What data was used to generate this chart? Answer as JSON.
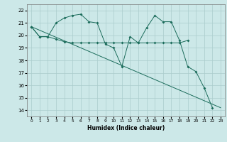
{
  "xlabel": "Humidex (Indice chaleur)",
  "background_color": "#cce8e8",
  "grid_color": "#aacccc",
  "line_color": "#1a6b5a",
  "xlim": [
    -0.5,
    23.5
  ],
  "ylim": [
    13.5,
    22.5
  ],
  "yticks": [
    14,
    15,
    16,
    17,
    18,
    19,
    20,
    21,
    22
  ],
  "xtick_labels": [
    "0",
    "1",
    "2",
    "3",
    "4",
    "5",
    "6",
    "7",
    "8",
    "9",
    "10",
    "11",
    "12",
    "13",
    "14",
    "15",
    "16",
    "17",
    "18",
    "19",
    "20",
    "21",
    "22",
    "23"
  ],
  "series1_x": [
    0,
    1,
    2,
    3,
    4,
    5,
    6,
    7,
    8,
    9,
    10,
    11,
    12,
    13,
    14,
    15,
    16,
    17,
    18,
    19,
    20,
    21,
    22
  ],
  "series1_y": [
    20.7,
    19.9,
    19.9,
    21.0,
    21.4,
    21.6,
    21.7,
    21.1,
    21.0,
    19.3,
    19.0,
    17.5,
    19.9,
    19.4,
    20.6,
    21.6,
    21.1,
    21.1,
    19.6,
    17.5,
    17.1,
    15.8,
    14.2
  ],
  "series2_x": [
    0,
    1,
    2,
    3,
    4,
    5,
    6,
    7,
    8,
    9,
    10,
    11,
    12,
    13,
    14,
    15,
    16,
    17,
    18,
    19
  ],
  "series2_y": [
    20.7,
    19.9,
    19.9,
    19.7,
    19.5,
    19.4,
    19.4,
    19.4,
    19.4,
    19.4,
    19.4,
    19.4,
    19.4,
    19.4,
    19.4,
    19.4,
    19.4,
    19.4,
    19.4,
    19.6
  ],
  "series3_x": [
    0,
    23
  ],
  "series3_y": [
    20.7,
    14.2
  ]
}
